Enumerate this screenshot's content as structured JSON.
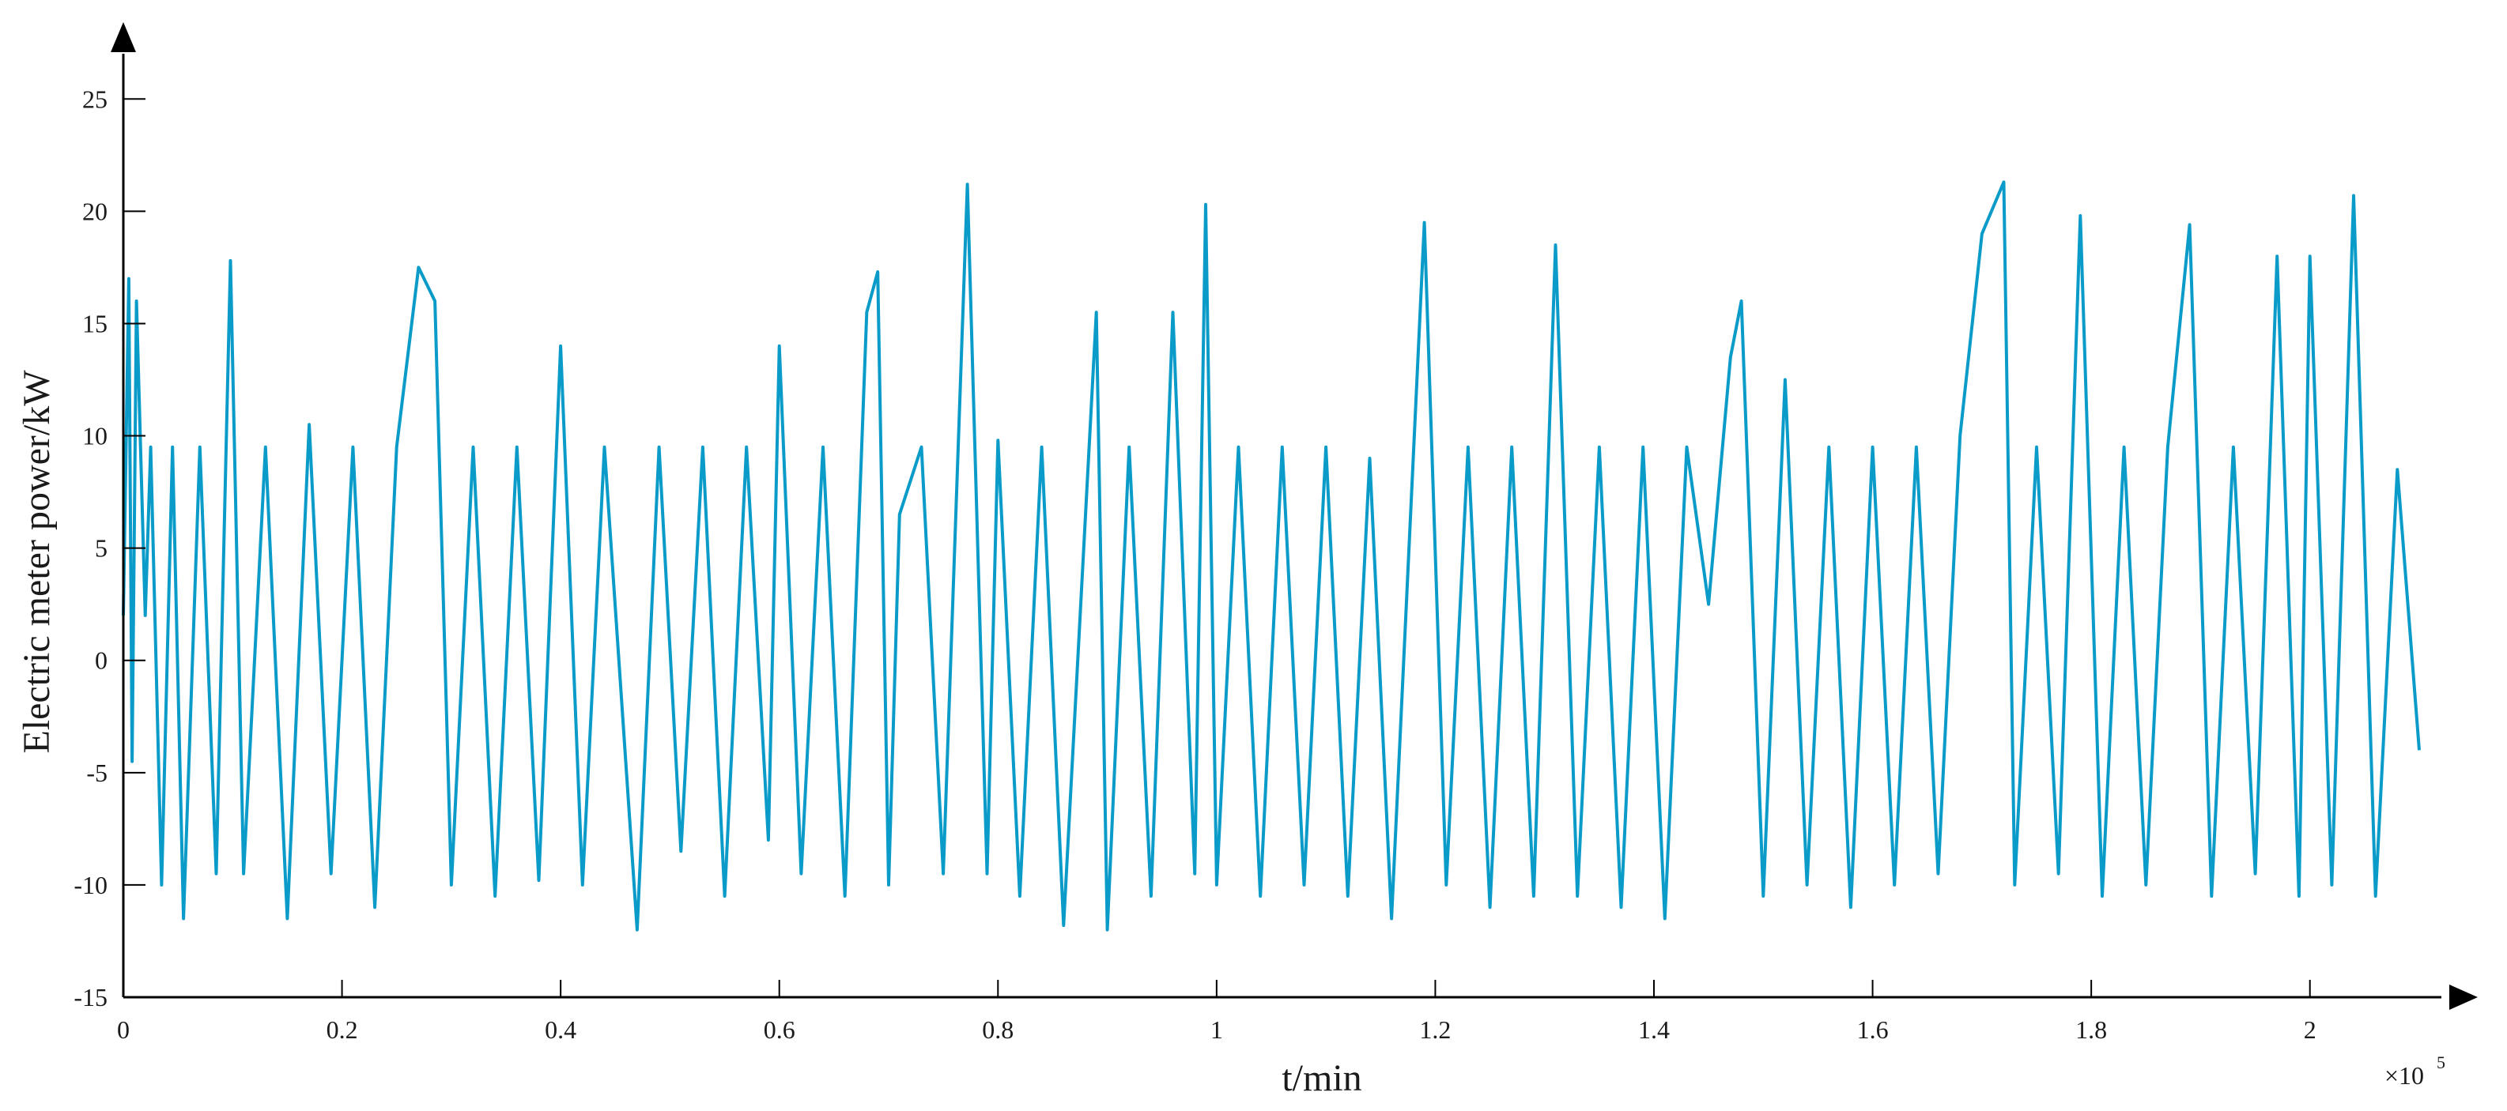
{
  "chart_data": {
    "type": "line",
    "title": "",
    "xlabel": "t/min",
    "ylabel": "Electric meter power/kW",
    "x_exponent_base": "×10",
    "x_exponent_power": "5",
    "xlim": [
      0,
      2.1
    ],
    "ylim": [
      -15,
      28
    ],
    "x_ticks": [
      0,
      0.2,
      0.4,
      0.6,
      0.8,
      1,
      1.2,
      1.4,
      1.6,
      1.8,
      2
    ],
    "x_tick_labels": [
      "0",
      "0.2",
      "0.4",
      "0.6",
      "0.8",
      "1",
      "1.2",
      "1.4",
      "1.6",
      "1.8",
      "2"
    ],
    "y_ticks": [
      -15,
      -10,
      -5,
      0,
      5,
      10,
      15,
      20,
      25
    ],
    "y_tick_labels": [
      "-15",
      "-10",
      "-5",
      "0",
      "5",
      "10",
      "15",
      "20",
      "25"
    ],
    "grid": false,
    "legend": "none",
    "line_color": "#0a9bc8",
    "series": [
      {
        "x": [
          0,
          0.005,
          0.008,
          0.012,
          0.02,
          0.025,
          0.035,
          0.045,
          0.055,
          0.07,
          0.085,
          0.098,
          0.11,
          0.13,
          0.15,
          0.17,
          0.19,
          0.21,
          0.23,
          0.25,
          0.27,
          0.285,
          0.3,
          0.32,
          0.34,
          0.36,
          0.38,
          0.4,
          0.42,
          0.44,
          0.47,
          0.49,
          0.51,
          0.53,
          0.55,
          0.57,
          0.59,
          0.6,
          0.62,
          0.64,
          0.66,
          0.68,
          0.69,
          0.7,
          0.71,
          0.73,
          0.75,
          0.772,
          0.79,
          0.8,
          0.82,
          0.84,
          0.86,
          0.89,
          0.9,
          0.92,
          0.94,
          0.96,
          0.98,
          0.99,
          1.0,
          1.02,
          1.04,
          1.06,
          1.08,
          1.1,
          1.12,
          1.14,
          1.16,
          1.19,
          1.21,
          1.23,
          1.25,
          1.27,
          1.29,
          1.31,
          1.33,
          1.35,
          1.37,
          1.39,
          1.41,
          1.43,
          1.45,
          1.47,
          1.48,
          1.5,
          1.52,
          1.54,
          1.56,
          1.58,
          1.6,
          1.62,
          1.64,
          1.66,
          1.68,
          1.7,
          1.72,
          1.73,
          1.75,
          1.77,
          1.79,
          1.81,
          1.83,
          1.85,
          1.87,
          1.89,
          1.91,
          1.93,
          1.95,
          1.97,
          1.99,
          2.0,
          2.02,
          2.04,
          2.06,
          2.08,
          2.1
        ],
        "y": [
          2,
          17,
          -4.5,
          16,
          2,
          9.5,
          -10,
          9.5,
          -11.5,
          9.5,
          -9.5,
          17.8,
          -9.5,
          9.5,
          -11.5,
          10.5,
          -9.5,
          9.5,
          -11,
          9.5,
          17.5,
          16,
          -10,
          9.5,
          -10.5,
          9.5,
          -9.8,
          14,
          -10,
          9.5,
          -12,
          9.5,
          -8.5,
          9.5,
          -10.5,
          9.5,
          -8,
          14,
          -9.5,
          9.5,
          -10.5,
          15.5,
          17.3,
          -10,
          6.5,
          9.5,
          -9.5,
          21.2,
          -9.5,
          9.8,
          -10.5,
          9.5,
          -11.8,
          15.5,
          -12,
          9.5,
          -10.5,
          15.5,
          -9.5,
          20.3,
          -10,
          9.5,
          -10.5,
          9.5,
          -10,
          9.5,
          -10.5,
          9,
          -11.5,
          19.5,
          -10,
          9.5,
          -11,
          9.5,
          -10.5,
          18.5,
          -10.5,
          9.5,
          -11,
          9.5,
          -11.5,
          9.5,
          2.5,
          13.5,
          16,
          -10.5,
          12.5,
          -10,
          9.5,
          -11,
          9.5,
          -10,
          9.5,
          -9.5,
          10,
          19,
          21.3,
          -10,
          9.5,
          -9.5,
          19.8,
          -10.5,
          9.5,
          -10,
          9.5,
          19.4,
          -10.5,
          9.5,
          -9.5,
          18,
          -10.5,
          18,
          -10,
          20.7,
          -10.5,
          8.5,
          -4
        ]
      }
    ]
  }
}
